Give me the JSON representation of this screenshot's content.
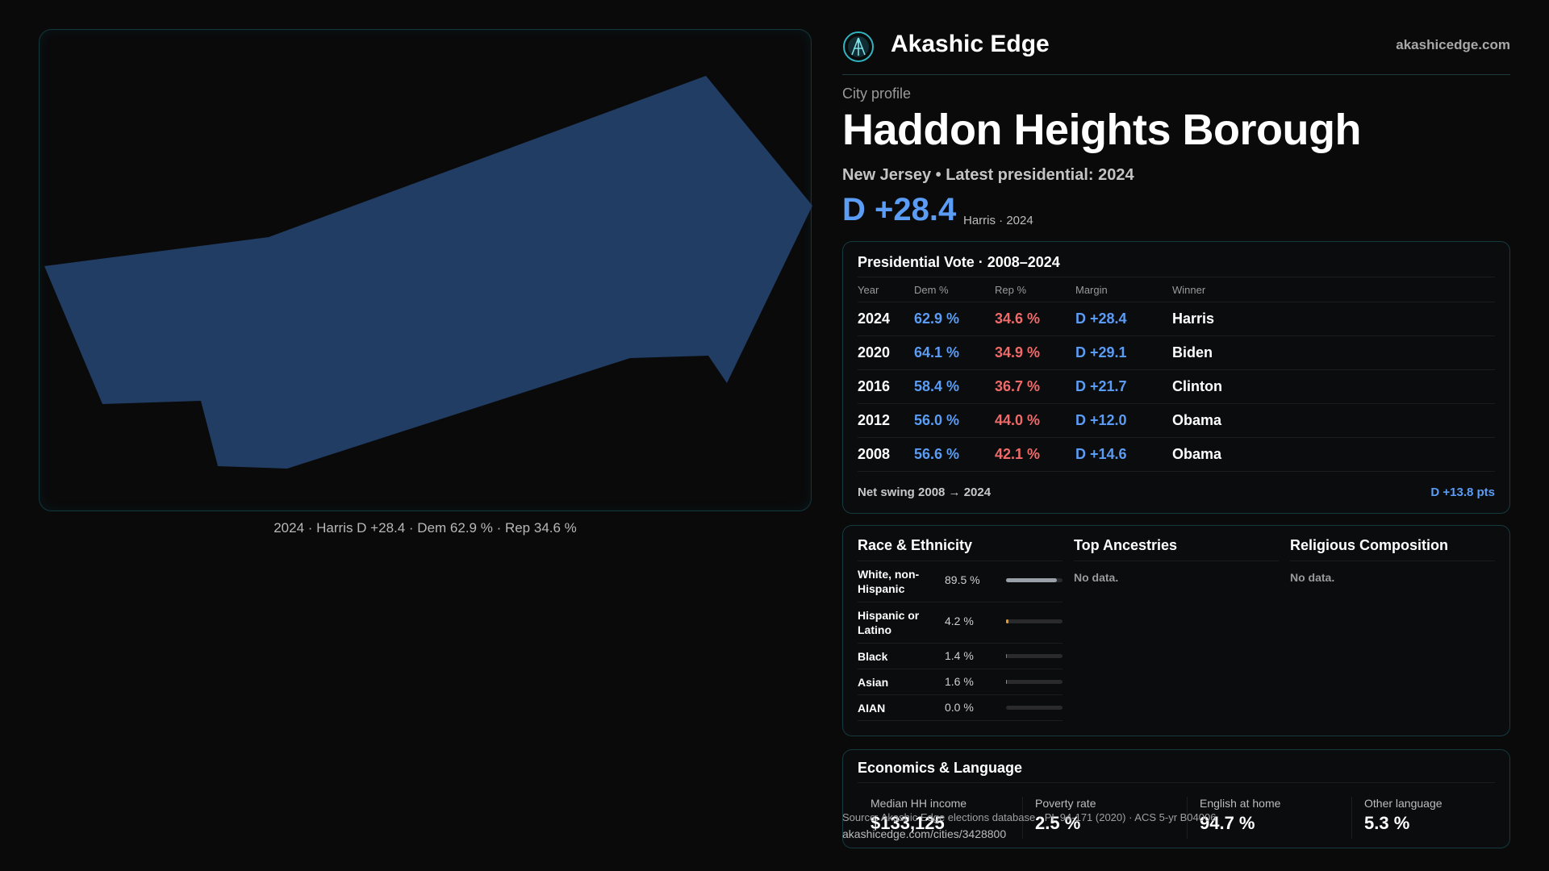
{
  "map": {
    "caption": "2024 · Harris D +28.4 · Dem 62.9 % · Rep 34.6 %",
    "fill_color": "#213d63"
  },
  "header": {
    "brand_name": "Akashic Edge",
    "brand_url": "akashicedge.com",
    "logo_icon": "akashic-logo-icon"
  },
  "profile": {
    "eyebrow": "City profile",
    "title": "Haddon Heights Borough",
    "subtitle": "New Jersey • Latest presidential: 2024",
    "margin": "D +28.4",
    "margin_note": "Harris · 2024"
  },
  "vote": {
    "title": "Presidential Vote · 2008–2024",
    "columns": [
      "Year",
      "Dem %",
      "Rep %",
      "Margin",
      "Winner"
    ],
    "rows": [
      {
        "year": "2024",
        "dem": "62.9 %",
        "rep": "34.6 %",
        "margin": "D +28.4",
        "winner": "Harris"
      },
      {
        "year": "2020",
        "dem": "64.1 %",
        "rep": "34.9 %",
        "margin": "D +29.1",
        "winner": "Biden"
      },
      {
        "year": "2016",
        "dem": "58.4 %",
        "rep": "36.7 %",
        "margin": "D +21.7",
        "winner": "Clinton"
      },
      {
        "year": "2012",
        "dem": "56.0 %",
        "rep": "44.0 %",
        "margin": "D +12.0",
        "winner": "Obama"
      },
      {
        "year": "2008",
        "dem": "56.6 %",
        "rep": "42.1 %",
        "margin": "D +14.6",
        "winner": "Obama"
      }
    ],
    "swing_label": "Net swing 2008 → 2024",
    "swing_value": "D +13.8 pts"
  },
  "demographics": {
    "race_title": "Race & Ethnicity",
    "race": [
      {
        "label": "White, non-Hispanic",
        "pct": "89.5 %",
        "value": 89.5,
        "color": "#9aa0a8"
      },
      {
        "label": "Hispanic or Latino",
        "pct": "4.2 %",
        "value": 4.2,
        "color": "#e69a2e"
      },
      {
        "label": "Black",
        "pct": "1.4 %",
        "value": 1.4,
        "color": "#7a6ad8"
      },
      {
        "label": "Asian",
        "pct": "1.6 %",
        "value": 1.6,
        "color": "#3bb8a0"
      },
      {
        "label": "AIAN",
        "pct": "0.0 %",
        "value": 0.0,
        "color": "#888888"
      }
    ],
    "ancestries_title": "Top Ancestries",
    "ancestries_empty": "No data.",
    "religion_title": "Religious Composition",
    "religion_empty": "No data."
  },
  "economics": {
    "title": "Economics & Language",
    "cells": [
      {
        "label": "Median HH income",
        "value": "$133,125"
      },
      {
        "label": "Poverty rate",
        "value": "2.5 %"
      },
      {
        "label": "English at home",
        "value": "94.7 %"
      },
      {
        "label": "Other language",
        "value": "5.3 %"
      }
    ]
  },
  "footer": {
    "source": "Source: Akashic Edge elections database · PL 94-171 (2020) · ACS 5-yr B04006",
    "url": "akashicedge.com/cities/3428800"
  }
}
